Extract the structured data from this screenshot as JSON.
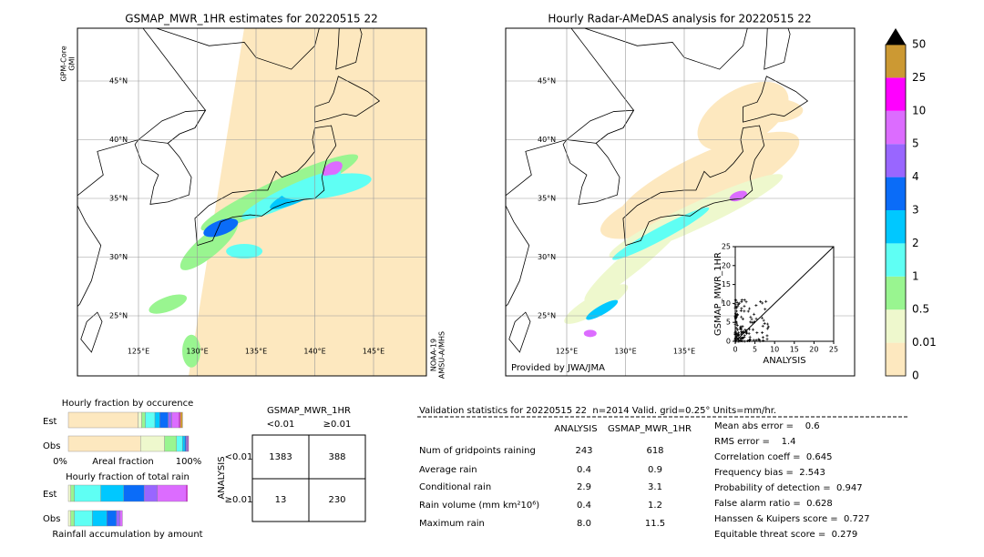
{
  "map_left": {
    "title": "GSMAP_MWR_1HR estimates for 20220515 22",
    "lat_labels": [
      "45°N",
      "40°N",
      "35°N",
      "30°N",
      "25°N"
    ],
    "lon_labels": [
      "125°E",
      "130°E",
      "135°E",
      "140°E",
      "145°E"
    ],
    "sensor_left": [
      "GPM-Core",
      "GMI"
    ],
    "sensor_right": [
      "NOAA-19",
      "AMSU-A/MHS"
    ]
  },
  "map_right": {
    "title": "Hourly Radar-AMeDAS analysis for 20220515 22",
    "lat_labels": [
      "45°N",
      "40°N",
      "35°N",
      "30°N",
      "25°N"
    ],
    "lon_labels": [
      "125°E",
      "130°E",
      "135°E"
    ],
    "credit": "Provided by JWA/JMA"
  },
  "inset": {
    "xlabel": "ANALYSIS",
    "ylabel": "GSMAP_MWR_1HR",
    "xlim": [
      0,
      25
    ],
    "ylim": [
      0,
      25
    ],
    "xticks": [
      0,
      5,
      10,
      15,
      20,
      25
    ],
    "yticks": [
      0,
      5,
      10,
      15,
      20,
      25
    ]
  },
  "colorbar": {
    "labels": [
      "0",
      "0.01",
      "0.5",
      "1",
      "2",
      "3",
      "4",
      "5",
      "10",
      "25",
      "50"
    ],
    "colors": [
      "#fde8bf",
      "#eef8cd",
      "#99f590",
      "#5ffff4",
      "#00c8ff",
      "#0a6cf8",
      "#9966ff",
      "#dc6cff",
      "#ff00ff",
      "#cc9933"
    ]
  },
  "occurrence_chart": {
    "title": "Hourly fraction by occurence",
    "rows": [
      "Est",
      "Obs"
    ],
    "axis_labels": [
      "0%",
      "Areal fraction",
      "100%"
    ],
    "Est": [
      58,
      3,
      3,
      8,
      4,
      7,
      3,
      6,
      1,
      2
    ],
    "Obs": [
      60,
      20,
      10,
      5,
      2,
      1,
      1,
      0.5,
      0.5,
      0
    ]
  },
  "rain_chart": {
    "title": "Hourly fraction of total rain",
    "rows": [
      "Est",
      "Obs"
    ],
    "footer": "Rainfall accumulation by amount",
    "Est": [
      0,
      2,
      3,
      22,
      19,
      17,
      11,
      24,
      1,
      0
    ],
    "Obs": [
      0,
      2,
      3,
      15,
      12,
      8,
      3,
      2,
      0,
      0
    ]
  },
  "contingency": {
    "title": "GSMAP_MWR_1HR",
    "col_headers": [
      "<0.01",
      "≥0.01"
    ],
    "row_title": "ANALYSIS",
    "row_headers": [
      "<0.01",
      "≥0.01"
    ],
    "cells": [
      [
        "1383",
        "388"
      ],
      [
        "13",
        "230"
      ]
    ]
  },
  "validation": {
    "header": "Validation statistics for 20220515 22  n=2014 Valid. grid=0.25° Units=mm/hr.",
    "columns": [
      "ANALYSIS",
      "GSMAP_MWR_1HR"
    ],
    "rows": [
      [
        "Num of gridpoints raining",
        "243",
        "618"
      ],
      [
        "Average rain",
        "0.4",
        "0.9"
      ],
      [
        "Conditional rain",
        "2.9",
        "3.1"
      ],
      [
        "Rain volume (mm km²10⁶)",
        "0.4",
        "1.2"
      ],
      [
        "Maximum rain",
        "8.0",
        "11.5"
      ]
    ],
    "scores": [
      "Mean abs error =    0.6",
      "RMS error =    1.4",
      "Correlation coeff =  0.645",
      "Frequency bias =  2.543",
      "Probability of detection =  0.947",
      "False alarm ratio =  0.628",
      "Hanssen & Kuipers score =  0.727",
      "Equitable threat score =  0.279"
    ]
  }
}
